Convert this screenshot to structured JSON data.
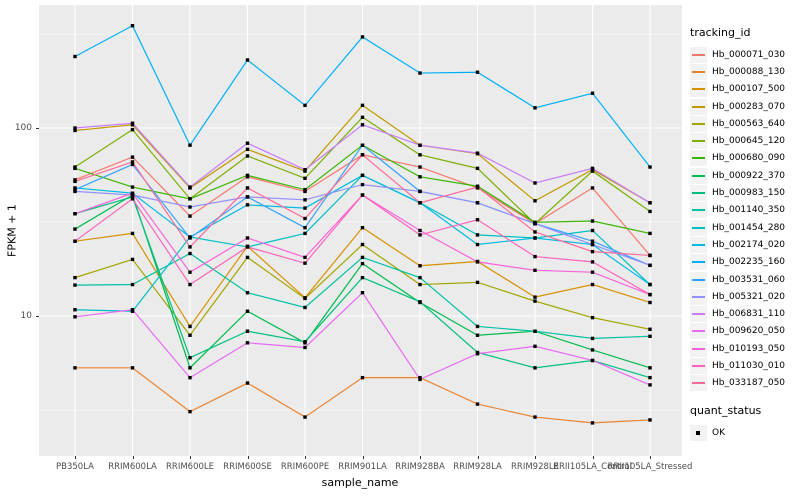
{
  "axes": {
    "y_title": "FPKM + 1",
    "x_title": "sample_name",
    "y_ticks": [
      {
        "label": "100",
        "value": 100
      },
      {
        "label": "10",
        "value": 10
      }
    ]
  },
  "legend": {
    "tracking_id_title": "tracking_id",
    "quant_status_title": "quant_status",
    "quant_status_value": "OK"
  },
  "style_colors": {
    "panel_background": "#EBEBEB",
    "grid_color": "#FFFFFF",
    "marker_color": "#000000",
    "legend_key_background": "#F2F2F2",
    "tick_label_color": "#4D4D4D"
  },
  "chart_data": {
    "type": "line",
    "x_type": "categorical",
    "y_scale": "log10",
    "title": "",
    "xlabel": "sample_name",
    "ylabel": "FPKM + 1",
    "ylim_log_approx": [
      1.8,
      440
    ],
    "grid": true,
    "legend_position": "right",
    "marker": "black-square",
    "y_major_gridlines": [
      10,
      100
    ],
    "y_minor_gridlines": [
      3.1623,
      31.623,
      316.23
    ],
    "categories": [
      "PB350LA",
      "RRIM600LA",
      "RRIM600LE",
      "RRIM600SE",
      "RRIM600PE",
      "RRIM901LA",
      "RRIM928BA",
      "RRIM928LA",
      "RRIM928LE",
      "RRII105LA_Control",
      "RRII105LA_Stressed"
    ],
    "series": [
      {
        "name": "Hb_000071_030",
        "color": "#F8766D",
        "values": [
          53,
          70,
          34,
          55,
          46,
          72,
          62,
          48,
          31,
          48,
          21
        ]
      },
      {
        "name": "Hb_000088_130",
        "color": "#EA8331",
        "values": [
          5.3,
          5.3,
          3.1,
          4.4,
          2.9,
          4.7,
          4.7,
          3.4,
          2.9,
          2.7,
          2.8
        ]
      },
      {
        "name": "Hb_000107_500",
        "color": "#D89000",
        "values": [
          25,
          27.5,
          8.8,
          23.5,
          12.5,
          29.5,
          18.5,
          19.5,
          12.6,
          14.7,
          11.8
        ]
      },
      {
        "name": "Hb_000283_070",
        "color": "#C09B00",
        "values": [
          97,
          104,
          48,
          77,
          59,
          132,
          81,
          73,
          41,
          60,
          40
        ]
      },
      {
        "name": "Hb_000563_640",
        "color": "#A3A500",
        "values": [
          16,
          20,
          7.9,
          20.5,
          12.4,
          24,
          14.7,
          15.1,
          12,
          9.8,
          8.5
        ]
      },
      {
        "name": "Hb_000645_120",
        "color": "#7CAE00",
        "values": [
          62,
          98,
          42,
          71,
          54,
          114,
          72,
          61,
          31,
          59,
          36
        ]
      },
      {
        "name": "Hb_000680_090",
        "color": "#39B600",
        "values": [
          61,
          48.5,
          42,
          56,
          47,
          81,
          55,
          49,
          31.5,
          32,
          27.5
        ]
      },
      {
        "name": "Hb_000922_370",
        "color": "#00BB4E",
        "values": [
          29,
          44,
          5.3,
          10.6,
          7.2,
          19,
          11.8,
          7.9,
          8.3,
          6.6,
          5.3
        ]
      },
      {
        "name": "Hb_000983_150",
        "color": "#00BF7D",
        "values": [
          35,
          43,
          6.0,
          8.3,
          7.3,
          16,
          11.9,
          6.4,
          5.3,
          5.8,
          4.7
        ]
      },
      {
        "name": "Hb_001140_350",
        "color": "#00C1A3",
        "values": [
          14.6,
          14.7,
          21.5,
          13.3,
          11.1,
          20.5,
          16,
          8.8,
          8.3,
          7.6,
          7.8
        ]
      },
      {
        "name": "Hb_001454_280",
        "color": "#00BFC4",
        "values": [
          10.8,
          10.6,
          26.3,
          23.3,
          27.5,
          56,
          40,
          27,
          26,
          28.5,
          14.7
        ]
      },
      {
        "name": "Hb_002174_020",
        "color": "#00BAE0",
        "values": [
          48,
          45,
          26.3,
          39,
          37.5,
          56,
          40,
          24,
          26,
          24,
          14.7
        ]
      },
      {
        "name": "Hb_002235_160",
        "color": "#00B0F6",
        "values": [
          240,
          350,
          81,
          230,
          132,
          305,
          196,
          198,
          128,
          153,
          62
        ]
      },
      {
        "name": "Hb_003531_060",
        "color": "#35A2FF",
        "values": [
          47,
          64,
          26,
          43,
          29.5,
          81,
          46,
          40,
          31,
          25,
          18.6
        ]
      },
      {
        "name": "Hb_005321_020",
        "color": "#9590FF",
        "values": [
          46,
          44,
          38,
          43,
          41.5,
          50,
          46,
          40,
          31,
          24,
          18.6
        ]
      },
      {
        "name": "Hb_006831_110",
        "color": "#C77CFF",
        "values": [
          100,
          106,
          48.5,
          83,
          60,
          104,
          81,
          73.5,
          51,
          61,
          40
        ]
      },
      {
        "name": "Hb_009620_050",
        "color": "#E76BF3",
        "values": [
          9.9,
          10.8,
          4.7,
          7.2,
          6.8,
          13.3,
          4.6,
          6.3,
          6.9,
          5.8,
          4.3
        ]
      },
      {
        "name": "Hb_010193_050",
        "color": "#FA62DB",
        "values": [
          35,
          45,
          17.1,
          26,
          20.5,
          44,
          28.5,
          19.4,
          17.5,
          17.1,
          13
        ]
      },
      {
        "name": "Hb_011030_010",
        "color": "#FF62BC",
        "values": [
          25,
          42,
          14.7,
          23.3,
          19.1,
          44,
          27,
          32.5,
          20.7,
          19.4,
          13
        ]
      },
      {
        "name": "Hb_033187_050",
        "color": "#FF6A98",
        "values": [
          52,
          66,
          23.3,
          48,
          33,
          72,
          40,
          48.5,
          28,
          22,
          21
        ]
      }
    ]
  }
}
